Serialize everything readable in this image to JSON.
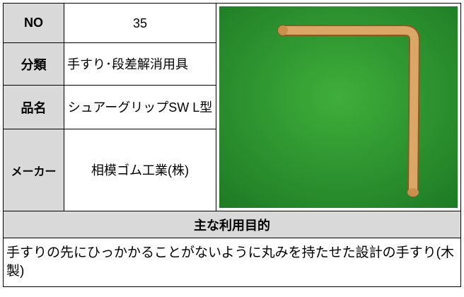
{
  "table": {
    "rows": [
      [
        "NO",
        35
      ],
      [
        "分類",
        "手すり･段差解消用具"
      ],
      [
        "品名",
        "シュアーグリップSW L型"
      ],
      [
        "メーカー",
        "相模ゴム工業(株)"
      ]
    ]
  },
  "purpose": {
    "heading": "主な利用目的",
    "text": "手すりの先にひっかかることがないように丸みを持たせた設計の手すり(木製)"
  }
}
